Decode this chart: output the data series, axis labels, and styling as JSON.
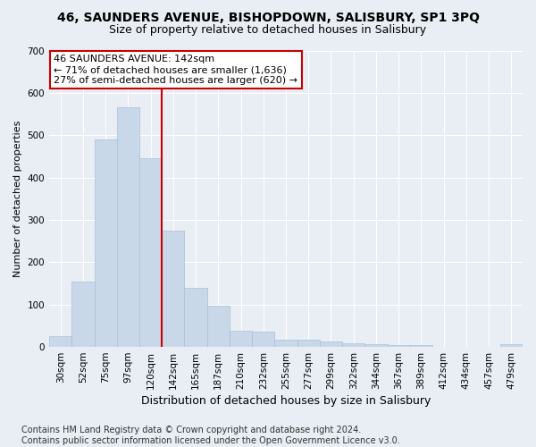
{
  "title1": "46, SAUNDERS AVENUE, BISHOPDOWN, SALISBURY, SP1 3PQ",
  "title2": "Size of property relative to detached houses in Salisbury",
  "xlabel": "Distribution of detached houses by size in Salisbury",
  "ylabel": "Number of detached properties",
  "categories": [
    "30sqm",
    "52sqm",
    "75sqm",
    "97sqm",
    "120sqm",
    "142sqm",
    "165sqm",
    "187sqm",
    "210sqm",
    "232sqm",
    "255sqm",
    "277sqm",
    "299sqm",
    "322sqm",
    "344sqm",
    "367sqm",
    "389sqm",
    "412sqm",
    "434sqm",
    "457sqm",
    "479sqm"
  ],
  "values": [
    25,
    155,
    490,
    565,
    445,
    275,
    140,
    97,
    38,
    37,
    18,
    16,
    12,
    9,
    6,
    5,
    4,
    0,
    0,
    0,
    7
  ],
  "bar_color": "#c8d8e8",
  "bar_edge_color": "#a8c0d8",
  "vline_x_index": 5,
  "vline_color": "#cc0000",
  "annotation_text": "46 SAUNDERS AVENUE: 142sqm\n← 71% of detached houses are smaller (1,636)\n27% of semi-detached houses are larger (620) →",
  "annotation_box_color": "#ffffff",
  "annotation_box_edge": "#cc0000",
  "ylim": [
    0,
    700
  ],
  "yticks": [
    0,
    100,
    200,
    300,
    400,
    500,
    600,
    700
  ],
  "footer_line1": "Contains HM Land Registry data © Crown copyright and database right 2024.",
  "footer_line2": "Contains public sector information licensed under the Open Government Licence v3.0.",
  "bg_color": "#e8eef4",
  "plot_bg_color": "#e8eef4",
  "grid_color": "#ffffff",
  "title1_fontsize": 10,
  "title2_fontsize": 9,
  "footer_fontsize": 7,
  "annotation_fontsize": 8,
  "ylabel_fontsize": 8,
  "xlabel_fontsize": 9,
  "tick_fontsize": 7.5
}
